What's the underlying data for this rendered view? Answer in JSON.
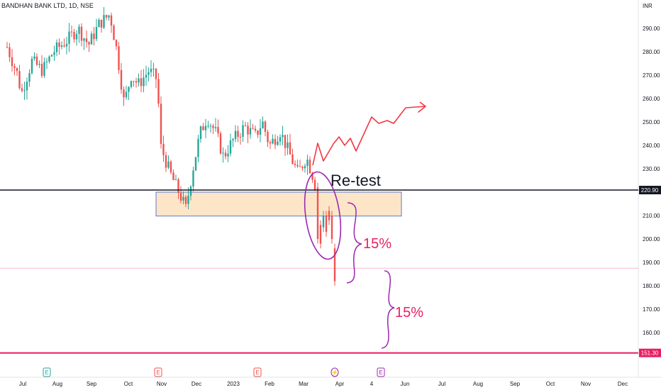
{
  "header": {
    "symbol": "BANDHAN BANK LTD, 1D, NSE"
  },
  "chart_data": {
    "type": "candlestick",
    "title": "BANDHAN BANK LTD, 1D, NSE",
    "currency_label": "INR",
    "y_ticks": [
      160,
      170,
      180,
      190,
      200,
      210,
      220,
      230,
      240,
      250,
      260,
      270,
      280,
      290
    ],
    "y_tick_labels": [
      "160.00",
      "170.00",
      "180.00",
      "190.00",
      "200.00",
      "210.00",
      "220.00",
      "230.00",
      "240.00",
      "250.00",
      "260.00",
      "270.00",
      "280.00",
      "290.00"
    ],
    "x_labels": [
      "Jul",
      "Aug",
      "Sep",
      "Oct",
      "Nov",
      "Dec",
      "2023",
      "Feb",
      "Mar",
      "Apr",
      "4",
      "Jun",
      "Jul",
      "Aug",
      "Sep",
      "Oct",
      "Nov",
      "Dec"
    ],
    "price_levels": [
      {
        "value": 220.9,
        "label": "220.90",
        "color": "#131722"
      },
      {
        "value": 151.3,
        "label": "151.30",
        "color": "#e91e63"
      }
    ],
    "event_markers": [
      "E",
      "E",
      "E",
      "⚡",
      "E"
    ],
    "annotations": [
      {
        "text": "Re-test",
        "color": "#131722"
      },
      {
        "text": "15%",
        "color": "#e91e63"
      },
      {
        "text": "15%",
        "color": "#e91e63"
      }
    ],
    "colors": {
      "up": "#26a69a",
      "down": "#ef5350",
      "zone_fill": "#fde6c8",
      "zone_border": "#5b7bd5",
      "projection": "#f23645",
      "brace": "#9c27b0"
    }
  }
}
